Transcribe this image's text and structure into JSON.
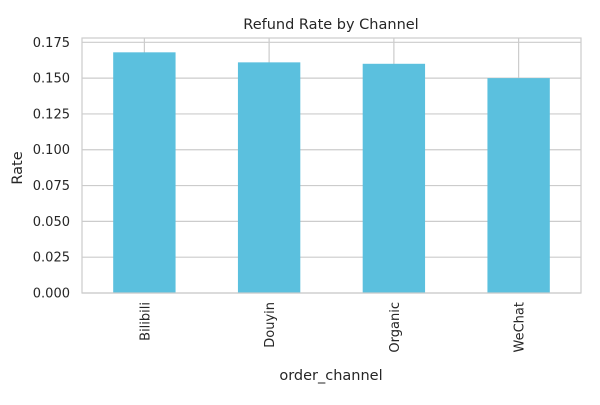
{
  "colors": {
    "bar": "#5bc0de",
    "grid": "#cccccc",
    "frame": "#cccccc",
    "text": "#262626",
    "background": "#ffffff"
  },
  "chart_data": {
    "type": "bar",
    "title": "Refund Rate by Channel",
    "xlabel": "order_channel",
    "ylabel": "Rate",
    "categories": [
      "Bilibili",
      "Douyin",
      "Organic",
      "WeChat"
    ],
    "values": [
      0.168,
      0.161,
      0.16,
      0.15
    ],
    "ylim": [
      0,
      0.178
    ],
    "yticks": [
      0.0,
      0.025,
      0.05,
      0.075,
      0.1,
      0.125,
      0.15,
      0.175
    ],
    "ytick_labels": [
      "0.000",
      "0.025",
      "0.050",
      "0.075",
      "0.100",
      "0.125",
      "0.150",
      "0.175"
    ],
    "grid": true,
    "legend": "none",
    "xtick_rotation": "vertical"
  }
}
